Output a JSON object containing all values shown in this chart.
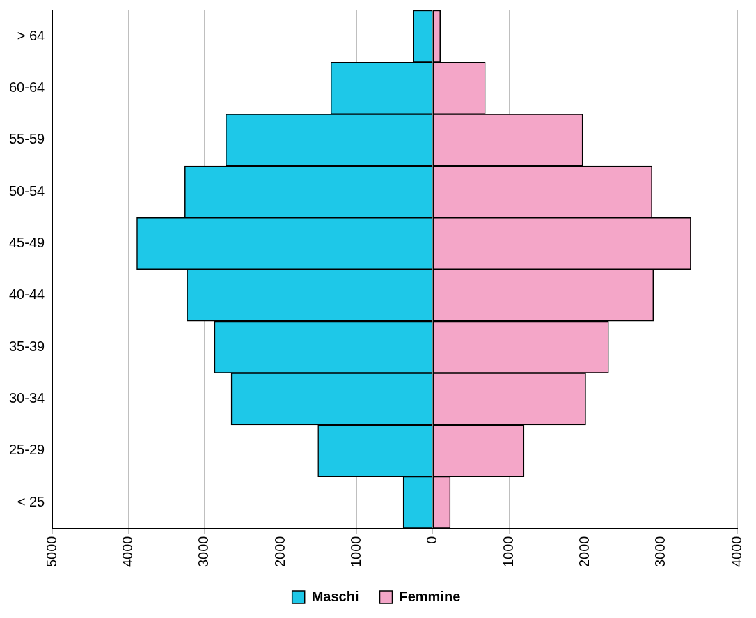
{
  "chart_data": {
    "type": "bar",
    "orientation": "horizontal",
    "stacked": true,
    "categories": [
      "> 64",
      "60-64",
      "55-59",
      "50-54",
      "45-49",
      "40-44",
      "35-39",
      "30-34",
      "25-29",
      "< 25"
    ],
    "series": [
      {
        "name": "Maschi",
        "color": "#1ec8e8",
        "values": [
          -260,
          -1340,
          -2720,
          -3260,
          -3890,
          -3230,
          -2870,
          -2650,
          -1510,
          -390
        ]
      },
      {
        "name": "Femmine",
        "color": "#f4a6c8",
        "values": [
          100,
          690,
          1970,
          2880,
          3390,
          2900,
          2310,
          2010,
          1200,
          230
        ]
      }
    ],
    "xlim": [
      -5000,
      4000
    ],
    "xticks": [
      {
        "value": -5000,
        "label": "5000"
      },
      {
        "value": -4000,
        "label": "4000"
      },
      {
        "value": -3000,
        "label": "3000"
      },
      {
        "value": -2000,
        "label": "2000"
      },
      {
        "value": -1000,
        "label": "1000"
      },
      0,
      1000,
      2000,
      3000,
      4000
    ],
    "grid": "x",
    "legend": "bottom"
  }
}
